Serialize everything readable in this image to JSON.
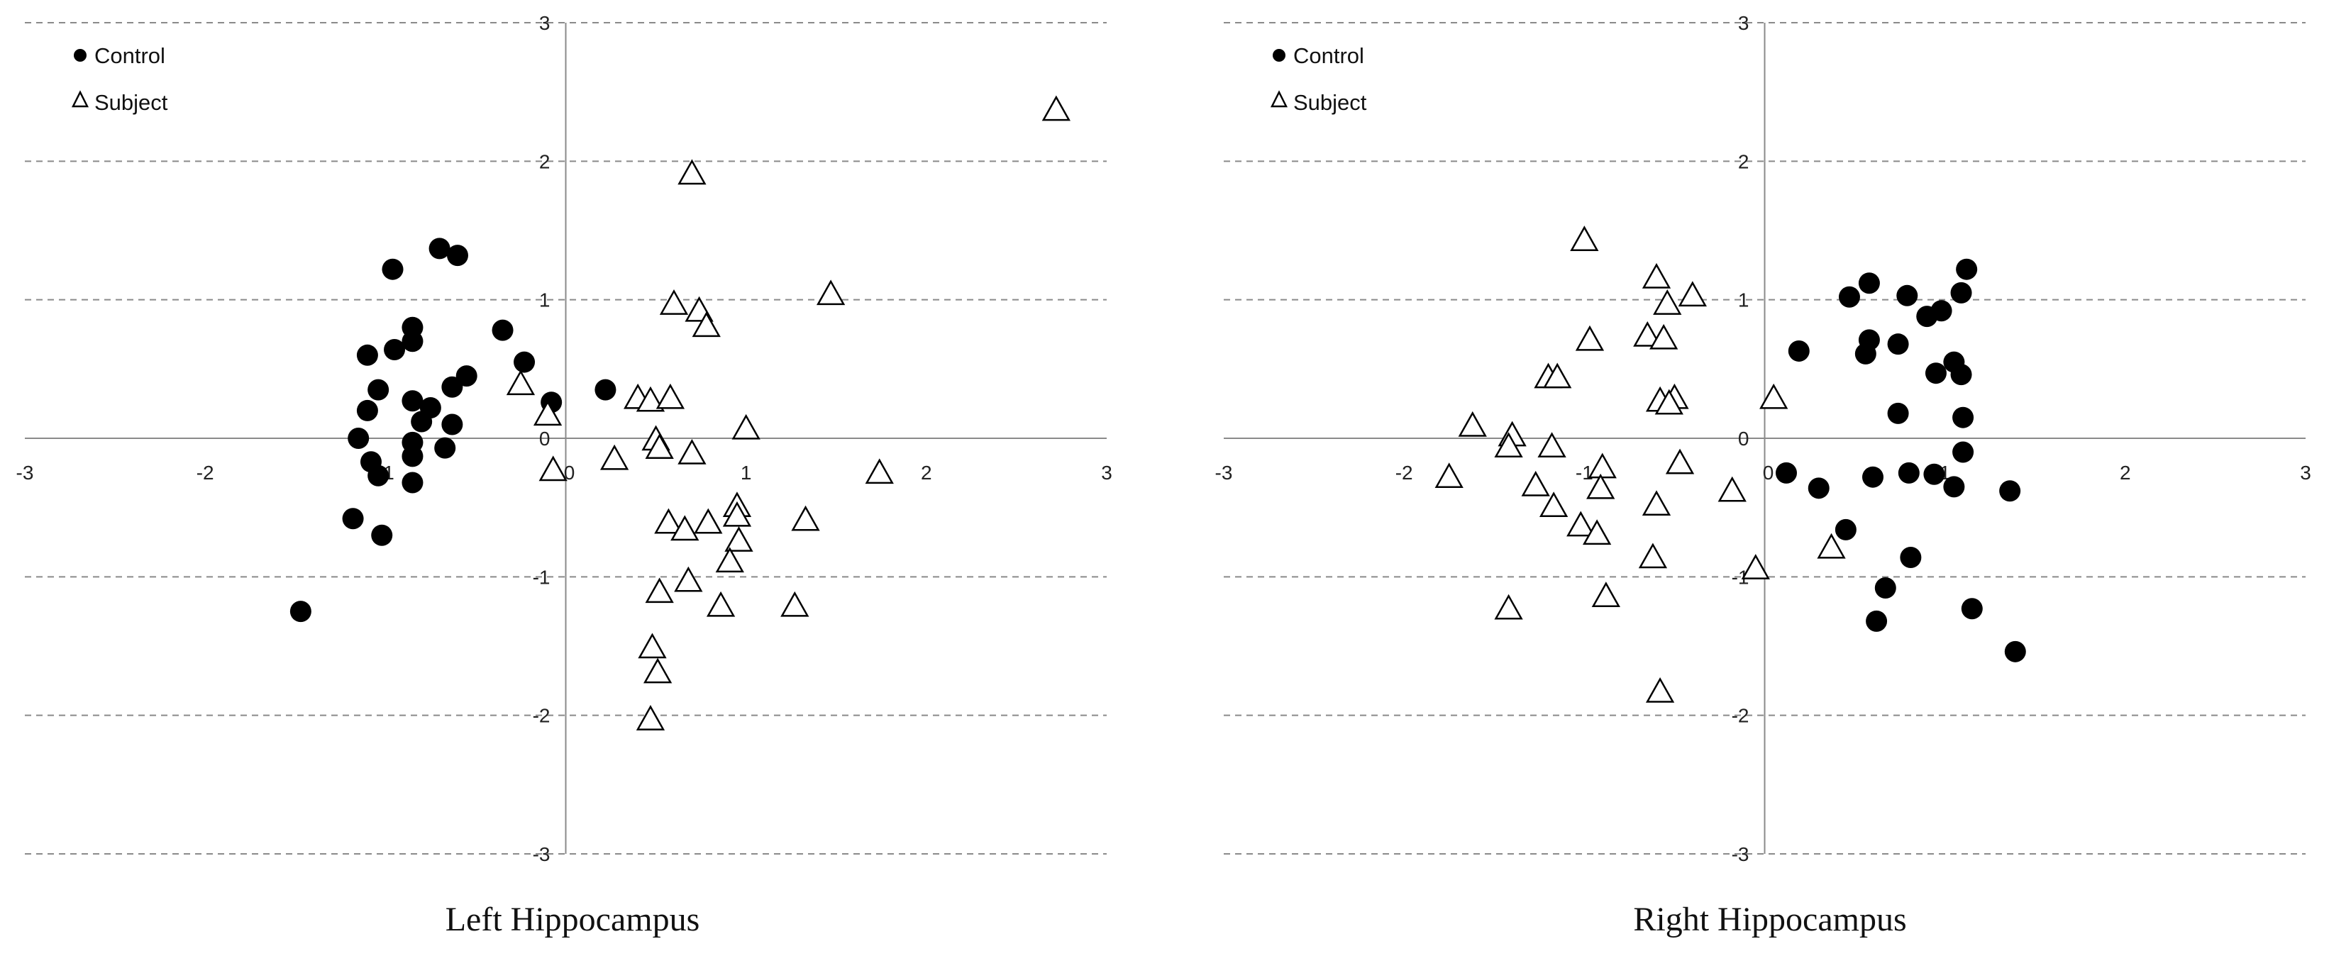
{
  "chart_data": [
    {
      "type": "scatter",
      "title": "Left Hippocampus",
      "xlim": [
        -3,
        3
      ],
      "ylim": [
        -3,
        3
      ],
      "x_ticks": [
        "-3",
        "-2",
        "-1",
        "0",
        "1",
        "2",
        "3"
      ],
      "y_ticks": [
        "3",
        "2",
        "1",
        "0",
        "-1",
        "-2",
        "-3"
      ],
      "grid": "horizontal dashed",
      "legend_position": "top-left",
      "series": [
        {
          "name": "Control",
          "marker": "filled-circle",
          "points": [
            [
              -0.7,
              1.37
            ],
            [
              -0.6,
              1.32
            ],
            [
              -0.96,
              1.22
            ],
            [
              -0.85,
              0.8
            ],
            [
              -0.95,
              0.64
            ],
            [
              -0.85,
              0.7
            ],
            [
              -1.1,
              0.6
            ],
            [
              -0.55,
              0.45
            ],
            [
              -0.63,
              0.37
            ],
            [
              -1.04,
              0.35
            ],
            [
              -0.85,
              0.27
            ],
            [
              -0.75,
              0.22
            ],
            [
              -1.1,
              0.2
            ],
            [
              -0.8,
              0.12
            ],
            [
              -0.63,
              0.1
            ],
            [
              -1.15,
              0.0
            ],
            [
              -0.85,
              -0.03
            ],
            [
              -0.67,
              -0.07
            ],
            [
              -0.85,
              -0.13
            ],
            [
              -1.08,
              -0.17
            ],
            [
              -1.04,
              -0.27
            ],
            [
              -0.85,
              -0.32
            ],
            [
              -0.35,
              0.78
            ],
            [
              -0.23,
              0.55
            ],
            [
              -0.08,
              0.26
            ],
            [
              0.22,
              0.35
            ],
            [
              -1.18,
              -0.58
            ],
            [
              -1.02,
              -0.7
            ],
            [
              -1.47,
              -1.25
            ]
          ]
        },
        {
          "name": "Subject",
          "marker": "open-triangle",
          "points": [
            [
              2.72,
              2.38
            ],
            [
              0.7,
              1.92
            ],
            [
              1.47,
              1.05
            ],
            [
              0.6,
              0.98
            ],
            [
              0.74,
              0.93
            ],
            [
              0.78,
              0.82
            ],
            [
              -0.25,
              0.4
            ],
            [
              0.4,
              0.3
            ],
            [
              0.47,
              0.28
            ],
            [
              0.58,
              0.3
            ],
            [
              -0.1,
              0.18
            ],
            [
              0.5,
              0.0
            ],
            [
              1.0,
              0.08
            ],
            [
              0.52,
              -0.06
            ],
            [
              0.7,
              -0.1
            ],
            [
              0.27,
              -0.14
            ],
            [
              -0.07,
              -0.22
            ],
            [
              1.74,
              -0.24
            ],
            [
              0.95,
              -0.48
            ],
            [
              0.95,
              -0.55
            ],
            [
              0.57,
              -0.6
            ],
            [
              1.33,
              -0.58
            ],
            [
              0.79,
              -0.6
            ],
            [
              0.66,
              -0.65
            ],
            [
              0.96,
              -0.73
            ],
            [
              0.91,
              -0.88
            ],
            [
              0.68,
              -1.02
            ],
            [
              0.52,
              -1.1
            ],
            [
              0.86,
              -1.2
            ],
            [
              1.27,
              -1.2
            ],
            [
              0.48,
              -1.5
            ],
            [
              0.51,
              -1.68
            ],
            [
              0.47,
              -2.02
            ]
          ]
        }
      ]
    },
    {
      "type": "scatter",
      "title": "Right Hippocampus",
      "xlim": [
        -3,
        3
      ],
      "ylim": [
        -3,
        3
      ],
      "x_ticks": [
        "-3",
        "-2",
        "-1",
        "0",
        "1",
        "2",
        "3"
      ],
      "y_ticks": [
        "3",
        "2",
        "1",
        "0",
        "-1",
        "-2",
        "-3"
      ],
      "grid": "horizontal dashed",
      "legend_position": "top-left",
      "series": [
        {
          "name": "Control",
          "marker": "filled-circle",
          "points": [
            [
              1.12,
              1.22
            ],
            [
              0.58,
              1.12
            ],
            [
              0.47,
              1.02
            ],
            [
              0.79,
              1.03
            ],
            [
              1.09,
              1.05
            ],
            [
              0.98,
              0.92
            ],
            [
              0.9,
              0.88
            ],
            [
              0.58,
              0.71
            ],
            [
              0.19,
              0.63
            ],
            [
              0.56,
              0.61
            ],
            [
              0.74,
              0.68
            ],
            [
              1.05,
              0.55
            ],
            [
              0.95,
              0.47
            ],
            [
              1.09,
              0.46
            ],
            [
              0.74,
              0.18
            ],
            [
              1.1,
              0.15
            ],
            [
              1.1,
              -0.1
            ],
            [
              0.12,
              -0.25
            ],
            [
              0.6,
              -0.28
            ],
            [
              0.8,
              -0.25
            ],
            [
              0.94,
              -0.26
            ],
            [
              0.3,
              -0.36
            ],
            [
              1.05,
              -0.35
            ],
            [
              1.36,
              -0.38
            ],
            [
              0.45,
              -0.66
            ],
            [
              0.81,
              -0.86
            ],
            [
              0.67,
              -1.08
            ],
            [
              1.15,
              -1.23
            ],
            [
              0.62,
              -1.32
            ],
            [
              1.39,
              -1.54
            ]
          ]
        },
        {
          "name": "Subject",
          "marker": "open-triangle",
          "points": [
            [
              -1.0,
              1.44
            ],
            [
              -0.6,
              1.17
            ],
            [
              -0.4,
              1.04
            ],
            [
              -0.54,
              0.98
            ],
            [
              -0.97,
              0.72
            ],
            [
              -0.65,
              0.75
            ],
            [
              -0.56,
              0.73
            ],
            [
              -1.2,
              0.45
            ],
            [
              -1.15,
              0.45
            ],
            [
              0.05,
              0.3
            ],
            [
              -0.5,
              0.3
            ],
            [
              -0.58,
              0.28
            ],
            [
              -0.53,
              0.26
            ],
            [
              -1.62,
              0.1
            ],
            [
              -1.4,
              0.03
            ],
            [
              -1.42,
              -0.05
            ],
            [
              -1.18,
              -0.05
            ],
            [
              -0.9,
              -0.2
            ],
            [
              -0.47,
              -0.17
            ],
            [
              -1.75,
              -0.27
            ],
            [
              -1.27,
              -0.33
            ],
            [
              -0.91,
              -0.35
            ],
            [
              -0.18,
              -0.37
            ],
            [
              -1.17,
              -0.48
            ],
            [
              -0.6,
              -0.47
            ],
            [
              -1.02,
              -0.62
            ],
            [
              -0.93,
              -0.68
            ],
            [
              -0.62,
              -0.85
            ],
            [
              -0.05,
              -0.93
            ],
            [
              0.37,
              -0.78
            ],
            [
              -0.88,
              -1.13
            ],
            [
              -1.42,
              -1.22
            ],
            [
              -0.58,
              -1.82
            ]
          ]
        }
      ]
    }
  ],
  "legend": {
    "control_label": "Control",
    "subject_label": "Subject"
  },
  "charts": [
    {
      "title": "Left Hippocampus"
    },
    {
      "title": "Right Hippocampus"
    }
  ]
}
